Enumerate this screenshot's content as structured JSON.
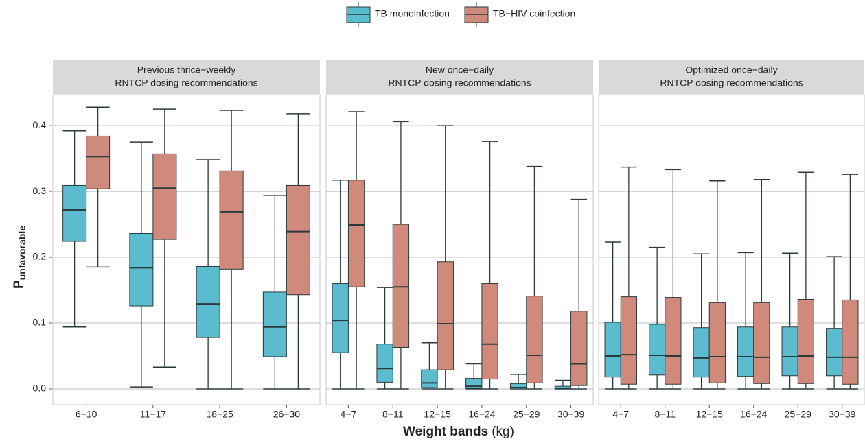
{
  "y_label": "P",
  "y_label_subscript": "unfavorable",
  "x_label": "Weight bands",
  "x_label_unit": "(kg)",
  "chart_data": [
    {
      "type": "box",
      "title": [
        "Previous thrice−weekly",
        "RNTCP dosing recommendations"
      ],
      "categories": [
        "6−10",
        "11−17",
        "18−25",
        "26−30"
      ],
      "ylim": [
        -0.024,
        0.447
      ],
      "yticks": [
        {
          "value": 0,
          "label": "0.0"
        },
        0.1,
        0.2,
        0.3,
        0.4
      ],
      "grid": true,
      "series": [
        {
          "name": "TB monoinfection",
          "color": "#5bbccf",
          "values": [
            {
              "low": 0.094,
              "q1": 0.224,
              "median": 0.272,
              "q3": 0.309,
              "high": 0.392
            },
            {
              "low": 0.003,
              "q1": 0.126,
              "median": 0.184,
              "q3": 0.236,
              "high": 0.375
            },
            {
              "low": 0,
              "q1": 0.078,
              "median": 0.129,
              "q3": 0.186,
              "high": 0.348
            },
            {
              "low": 0,
              "q1": 0.049,
              "median": 0.094,
              "q3": 0.147,
              "high": 0.294
            }
          ]
        },
        {
          "name": "TB−HIV coinfection",
          "color": "#d08a7b",
          "values": [
            {
              "low": 0.185,
              "q1": 0.304,
              "median": 0.353,
              "q3": 0.384,
              "high": 0.428
            },
            {
              "low": 0.033,
              "q1": 0.227,
              "median": 0.305,
              "q3": 0.357,
              "high": 0.425
            },
            {
              "low": 0,
              "q1": 0.182,
              "median": 0.269,
              "q3": 0.331,
              "high": 0.423
            },
            {
              "low": 0,
              "q1": 0.143,
              "median": 0.239,
              "q3": 0.309,
              "high": 0.418
            }
          ]
        }
      ]
    },
    {
      "type": "box",
      "title": [
        "New once−daily",
        "RNTCP dosing recommendations"
      ],
      "categories": [
        "4−7",
        "8−11",
        "12−15",
        "16−24",
        "25−29",
        "30−39"
      ],
      "series": [
        {
          "name": "TB monoinfection",
          "color": "#5bbccf",
          "values": [
            {
              "low": 0,
              "q1": 0.055,
              "median": 0.104,
              "q3": 0.16,
              "high": 0.317
            },
            {
              "low": 0,
              "q1": 0.01,
              "median": 0.031,
              "q3": 0.068,
              "high": 0.154
            },
            {
              "low": 0,
              "q1": 0.002,
              "median": 0.009,
              "q3": 0.029,
              "high": 0.07
            },
            {
              "low": 0,
              "q1": 0.001,
              "median": 0.004,
              "q3": 0.016,
              "high": 0.038
            },
            {
              "low": 0,
              "q1": 0,
              "median": 0.002,
              "q3": 0.008,
              "high": 0.022
            },
            {
              "low": 0,
              "q1": 0,
              "median": 0.001,
              "q3": 0.004,
              "high": 0.013
            }
          ]
        },
        {
          "name": "TB−HIV coinfection",
          "color": "#d08a7b",
          "values": [
            {
              "low": 0,
              "q1": 0.155,
              "median": 0.249,
              "q3": 0.317,
              "high": 0.421
            },
            {
              "low": 0,
              "q1": 0.063,
              "median": 0.155,
              "q3": 0.25,
              "high": 0.406
            },
            {
              "low": 0,
              "q1": 0.029,
              "median": 0.099,
              "q3": 0.193,
              "high": 0.4
            },
            {
              "low": 0,
              "q1": 0.015,
              "median": 0.068,
              "q3": 0.16,
              "high": 0.376
            },
            {
              "low": 0,
              "q1": 0.009,
              "median": 0.051,
              "q3": 0.141,
              "high": 0.338
            },
            {
              "low": 0,
              "q1": 0.005,
              "median": 0.038,
              "q3": 0.118,
              "high": 0.288
            }
          ]
        }
      ]
    },
    {
      "type": "box",
      "title": [
        "Optimized once−daily",
        "RNTCP dosing recommendations"
      ],
      "categories": [
        "4−7",
        "8−11",
        "12−15",
        "16−24",
        "25−29",
        "30−39"
      ],
      "series": [
        {
          "name": "TB monoinfection",
          "color": "#5bbccf",
          "values": [
            {
              "low": 0,
              "q1": 0.018,
              "median": 0.05,
              "q3": 0.101,
              "high": 0.223
            },
            {
              "low": 0,
              "q1": 0.021,
              "median": 0.051,
              "q3": 0.098,
              "high": 0.215
            },
            {
              "low": 0,
              "q1": 0.018,
              "median": 0.047,
              "q3": 0.093,
              "high": 0.205
            },
            {
              "low": 0,
              "q1": 0.019,
              "median": 0.049,
              "q3": 0.094,
              "high": 0.207
            },
            {
              "low": 0,
              "q1": 0.02,
              "median": 0.049,
              "q3": 0.094,
              "high": 0.206
            },
            {
              "low": 0,
              "q1": 0.02,
              "median": 0.048,
              "q3": 0.092,
              "high": 0.201
            }
          ]
        },
        {
          "name": "TB−HIV coinfection",
          "color": "#d08a7b",
          "values": [
            {
              "low": 0,
              "q1": 0.007,
              "median": 0.052,
              "q3": 0.14,
              "high": 0.337
            },
            {
              "low": 0,
              "q1": 0.007,
              "median": 0.05,
              "q3": 0.139,
              "high": 0.333
            },
            {
              "low": 0,
              "q1": 0.009,
              "median": 0.049,
              "q3": 0.131,
              "high": 0.316
            },
            {
              "low": 0,
              "q1": 0.008,
              "median": 0.048,
              "q3": 0.131,
              "high": 0.318
            },
            {
              "low": 0,
              "q1": 0.008,
              "median": 0.05,
              "q3": 0.136,
              "high": 0.329
            },
            {
              "low": 0,
              "q1": 0.007,
              "median": 0.048,
              "q3": 0.135,
              "high": 0.326
            }
          ]
        }
      ]
    }
  ]
}
